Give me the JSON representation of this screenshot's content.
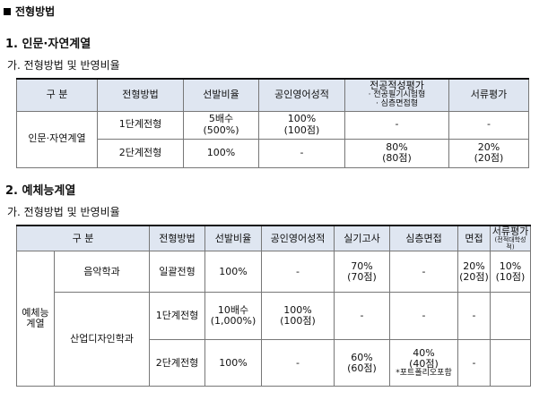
{
  "page": {
    "heading": "전형방법"
  },
  "section1": {
    "title": "1. 인문·자연계열",
    "subtitle": "가. 전형방법 및 반영비율",
    "header": {
      "gubun": "구  분",
      "method": "전형방법",
      "selection": "선발비율",
      "english": "공인영어성적",
      "aptitude": "전공적성평가",
      "aptitude_sub1": "· 전공필기시험형",
      "aptitude_sub2": "· 심층면접형",
      "docs": "서류평가"
    },
    "group": "인문·자연계열",
    "rows": [
      {
        "method": "1단계전형",
        "selection": "5배수",
        "selection_sub": "(500%)",
        "english": "100%",
        "english_sub": "(100점)",
        "aptitude": "-",
        "aptitude_sub": "",
        "docs": "-",
        "docs_sub": ""
      },
      {
        "method": "2단계전형",
        "selection": "100%",
        "selection_sub": "",
        "english": "-",
        "english_sub": "",
        "aptitude": "80%",
        "aptitude_sub": "(80점)",
        "docs": "20%",
        "docs_sub": "(20점)"
      }
    ]
  },
  "section2": {
    "title": "2. 예체능계열",
    "subtitle": "가. 전형방법 및 반영비율",
    "header": {
      "gubun": "구  분",
      "method": "전형방법",
      "selection": "선발비율",
      "english": "공인영어성적",
      "practical": "실기고사",
      "interview": "심층면접",
      "meet": "면접",
      "docs": "서류평가",
      "docs_sub": "(전적대학성적)"
    },
    "group_line1": "예체능",
    "group_line2": "계열",
    "music": {
      "dept": "음악학과",
      "method": "일괄전형",
      "selection": "100%",
      "english": "-",
      "practical": "70%",
      "practical_sub": "(70점)",
      "interview": "-",
      "meet": "20%",
      "meet_sub": "(20점)",
      "docs": "10%",
      "docs_sub": "(10점)"
    },
    "design": {
      "dept": "산업디자인학과",
      "rows": [
        {
          "method": "1단계전형",
          "selection": "10배수",
          "selection_sub": "(1,000%)",
          "english": "100%",
          "english_sub": "(100점)",
          "practical": "-",
          "practical_sub": "",
          "interview": "-",
          "interview_sub": "",
          "interview_note": "",
          "meet": "-"
        },
        {
          "method": "2단계전형",
          "selection": "100%",
          "selection_sub": "",
          "english": "-",
          "english_sub": "",
          "practical": "60%",
          "practical_sub": "(60점)",
          "interview": "40%",
          "interview_sub": "(40점)",
          "interview_note": "*포트폴리오포함",
          "meet": "-"
        }
      ]
    }
  },
  "colors": {
    "header_bg": "#dfe6f1",
    "border": "#777777"
  }
}
